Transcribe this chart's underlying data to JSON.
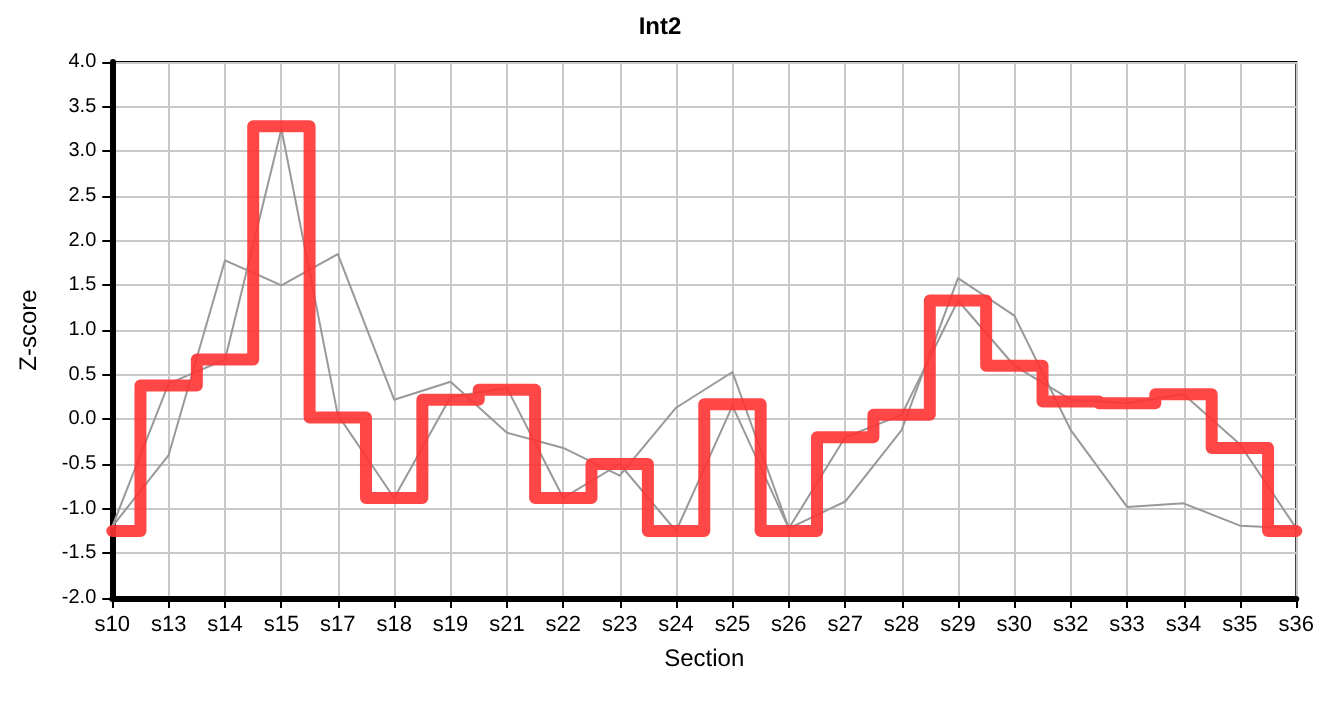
{
  "chart_data": {
    "type": "line",
    "title": "Int2",
    "xlabel": "Section",
    "ylabel": "Z-score",
    "categories": [
      "s10",
      "s13",
      "s14",
      "s15",
      "s17",
      "s18",
      "s19",
      "s21",
      "s22",
      "s23",
      "s24",
      "s25",
      "s26",
      "s27",
      "s28",
      "s29",
      "s30",
      "s32",
      "s33",
      "s34",
      "s35",
      "s36"
    ],
    "series": [
      {
        "color": "#999999",
        "values": [
          -1.2,
          -0.4,
          1.78,
          1.5,
          1.85,
          0.22,
          0.42,
          -0.15,
          -0.32,
          -0.63,
          0.13,
          0.53,
          -1.22,
          -0.92,
          -0.12,
          1.58,
          1.16,
          -0.12,
          -0.98,
          -0.94,
          -1.19,
          -1.22
        ]
      },
      {
        "color": "#999999",
        "values": [
          -1.2,
          0.4,
          0.67,
          3.25,
          0.05,
          -0.88,
          0.25,
          0.35,
          -0.88,
          -0.5,
          -1.25,
          0.15,
          -1.22,
          -0.2,
          0.05,
          1.33,
          0.6,
          0.22,
          0.18,
          0.28,
          -0.28,
          -1.22
        ]
      },
      {
        "type": "step",
        "color": "#ff3333",
        "values": [
          -1.25,
          0.38,
          0.67,
          3.28,
          0.02,
          -0.88,
          0.22,
          0.33,
          -0.88,
          -0.5,
          -1.25,
          0.17,
          -1.25,
          -0.2,
          0.05,
          1.33,
          0.6,
          0.2,
          0.18,
          0.28,
          -0.32,
          -1.25
        ]
      }
    ],
    "ylim": [
      -2,
      4
    ],
    "yticks": [
      {
        "value": -2,
        "label": "-2.0"
      },
      {
        "value": -1.5,
        "label": "-1.5"
      },
      {
        "value": -1,
        "label": "-1.0"
      },
      {
        "value": -0.5,
        "label": "-0.5"
      },
      {
        "value": 0,
        "label": "0.0"
      },
      {
        "value": 0.5,
        "label": "0.5"
      },
      {
        "value": 1,
        "label": "1.0"
      },
      {
        "value": 1.5,
        "label": "1.5"
      },
      {
        "value": 2,
        "label": "2.0"
      },
      {
        "value": 2.5,
        "label": "2.5"
      },
      {
        "value": 3,
        "label": "3.0"
      },
      {
        "value": 3.5,
        "label": "3.5"
      },
      {
        "value": 4,
        "label": "4.0"
      }
    ],
    "grid": true,
    "marker": "none",
    "line_style": "solid"
  }
}
